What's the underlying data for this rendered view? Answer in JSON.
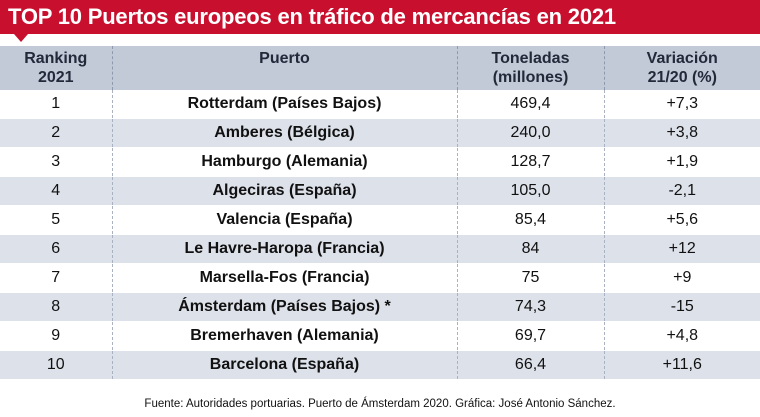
{
  "title": "TOP 10 Puertos europeos en tráfico de mercancías en 2021",
  "colors": {
    "accent": "#c8102e",
    "header_bg": "#c2cad8",
    "stripe": "#dde1ea"
  },
  "table": {
    "headers": {
      "ranking_line1": "Ranking",
      "ranking_line2": "2021",
      "port": "Puerto",
      "tons_line1": "Toneladas",
      "tons_line2": "(millones)",
      "var_line1": "Variación",
      "var_line2": "21/20 (%)"
    },
    "rows": [
      {
        "rank": "1",
        "port": "Rotterdam (Países Bajos)",
        "tons": "469,4",
        "change": "+7,3"
      },
      {
        "rank": "2",
        "port": "Amberes (Bélgica)",
        "tons": "240,0",
        "change": "+3,8"
      },
      {
        "rank": "3",
        "port": "Hamburgo (Alemania)",
        "tons": "128,7",
        "change": "+1,9"
      },
      {
        "rank": "4",
        "port": "Algeciras (España)",
        "tons": "105,0",
        "change": "-2,1"
      },
      {
        "rank": "5",
        "port": "Valencia (España)",
        "tons": "85,4",
        "change": "+5,6"
      },
      {
        "rank": "6",
        "port": "Le Havre-Haropa (Francia)",
        "tons": "84",
        "change": "+12"
      },
      {
        "rank": "7",
        "port": "Marsella-Fos (Francia)",
        "tons": "75",
        "change": "+9"
      },
      {
        "rank": "8",
        "port": "Ámsterdam (Países Bajos) *",
        "tons": "74,3",
        "change": "-15"
      },
      {
        "rank": "9",
        "port": "Bremerhaven (Alemania)",
        "tons": "69,7",
        "change": "+4,8"
      },
      {
        "rank": "10",
        "port": "Barcelona (España)",
        "tons": "66,4",
        "change": "+11,6"
      }
    ]
  },
  "footer": "Fuente: Autoridades portuarias. Puerto de Ámsterdam 2020. Gráfica: José Antonio Sánchez."
}
